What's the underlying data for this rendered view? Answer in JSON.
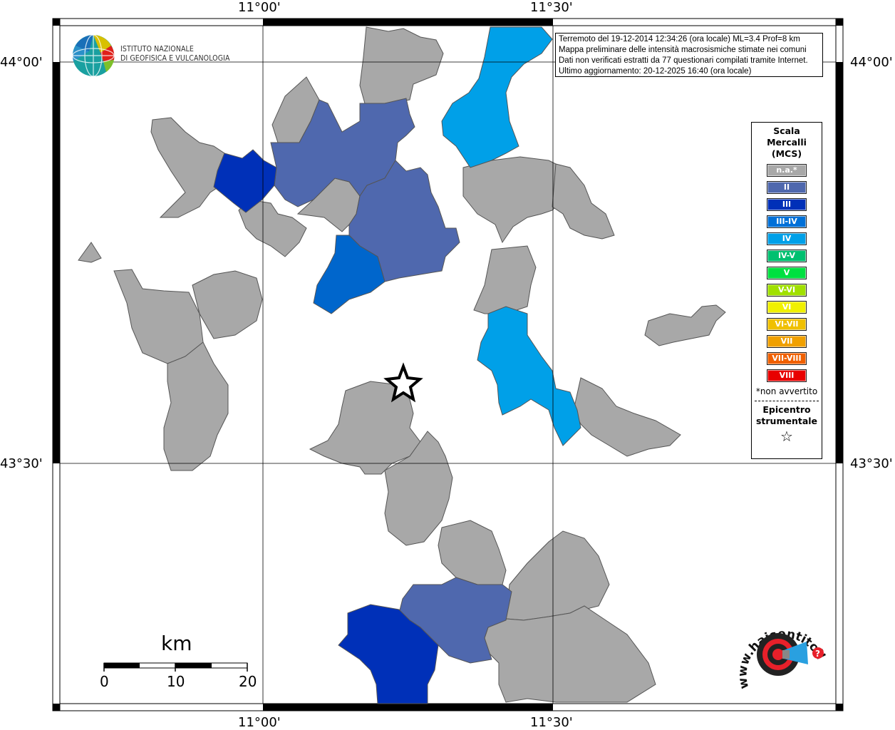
{
  "info": {
    "line1": "Terremoto del 19-12-2014 12:34:26 (ora locale) ML=3.4 Prof=8 km",
    "line2": "Mappa preliminare delle intensità macrosismiche stimate nei comuni",
    "line3": "Dati non verificati estratti da 77 questionari compilati tramite Internet.",
    "line4": "Ultimo aggiornamento: 20-12-2025 16:40 (ora locale)"
  },
  "logo": {
    "line1": "ISTITUTO NAZIONALE",
    "line2": "DI GEOFISICA E VULCANOLOGIA"
  },
  "coords": {
    "top_left": "11°00'",
    "top_right": "11°30'",
    "bottom_left": "11°00'",
    "bottom_right": "11°30'",
    "lat_north_left": "44°00'",
    "lat_north_right": "44°00'",
    "lat_south_left": "43°30'",
    "lat_south_right": "43°30'"
  },
  "legend": {
    "title_1": "Scala",
    "title_2": "Mercalli",
    "title_3": "(MCS)",
    "items": [
      {
        "label": "n.a.*",
        "color": "#a8a8a8"
      },
      {
        "label": "II",
        "color": "#4f68ae"
      },
      {
        "label": "III",
        "color": "#0030b8"
      },
      {
        "label": "III-IV",
        "color": "#0070d8"
      },
      {
        "label": "IV",
        "color": "#00a0e8"
      },
      {
        "label": "IV-V",
        "color": "#00c070"
      },
      {
        "label": "V",
        "color": "#00e040"
      },
      {
        "label": "V-VI",
        "color": "#a0e000"
      },
      {
        "label": "VI",
        "color": "#f0f000"
      },
      {
        "label": "VI-VII",
        "color": "#f0c000"
      },
      {
        "label": "VII",
        "color": "#f0a000"
      },
      {
        "label": "VII-VIII",
        "color": "#f06000"
      },
      {
        "label": "VIII",
        "color": "#e80000"
      }
    ],
    "note": "*non avvertito",
    "epicenter_1": "Epicentro",
    "epicenter_2": "strumentale",
    "star": "☆"
  },
  "scale": {
    "unit": "km",
    "t0": "0",
    "t1": "10",
    "t2": "20"
  },
  "badge": {
    "text": "www.haisentitoilterremoto.it"
  }
}
